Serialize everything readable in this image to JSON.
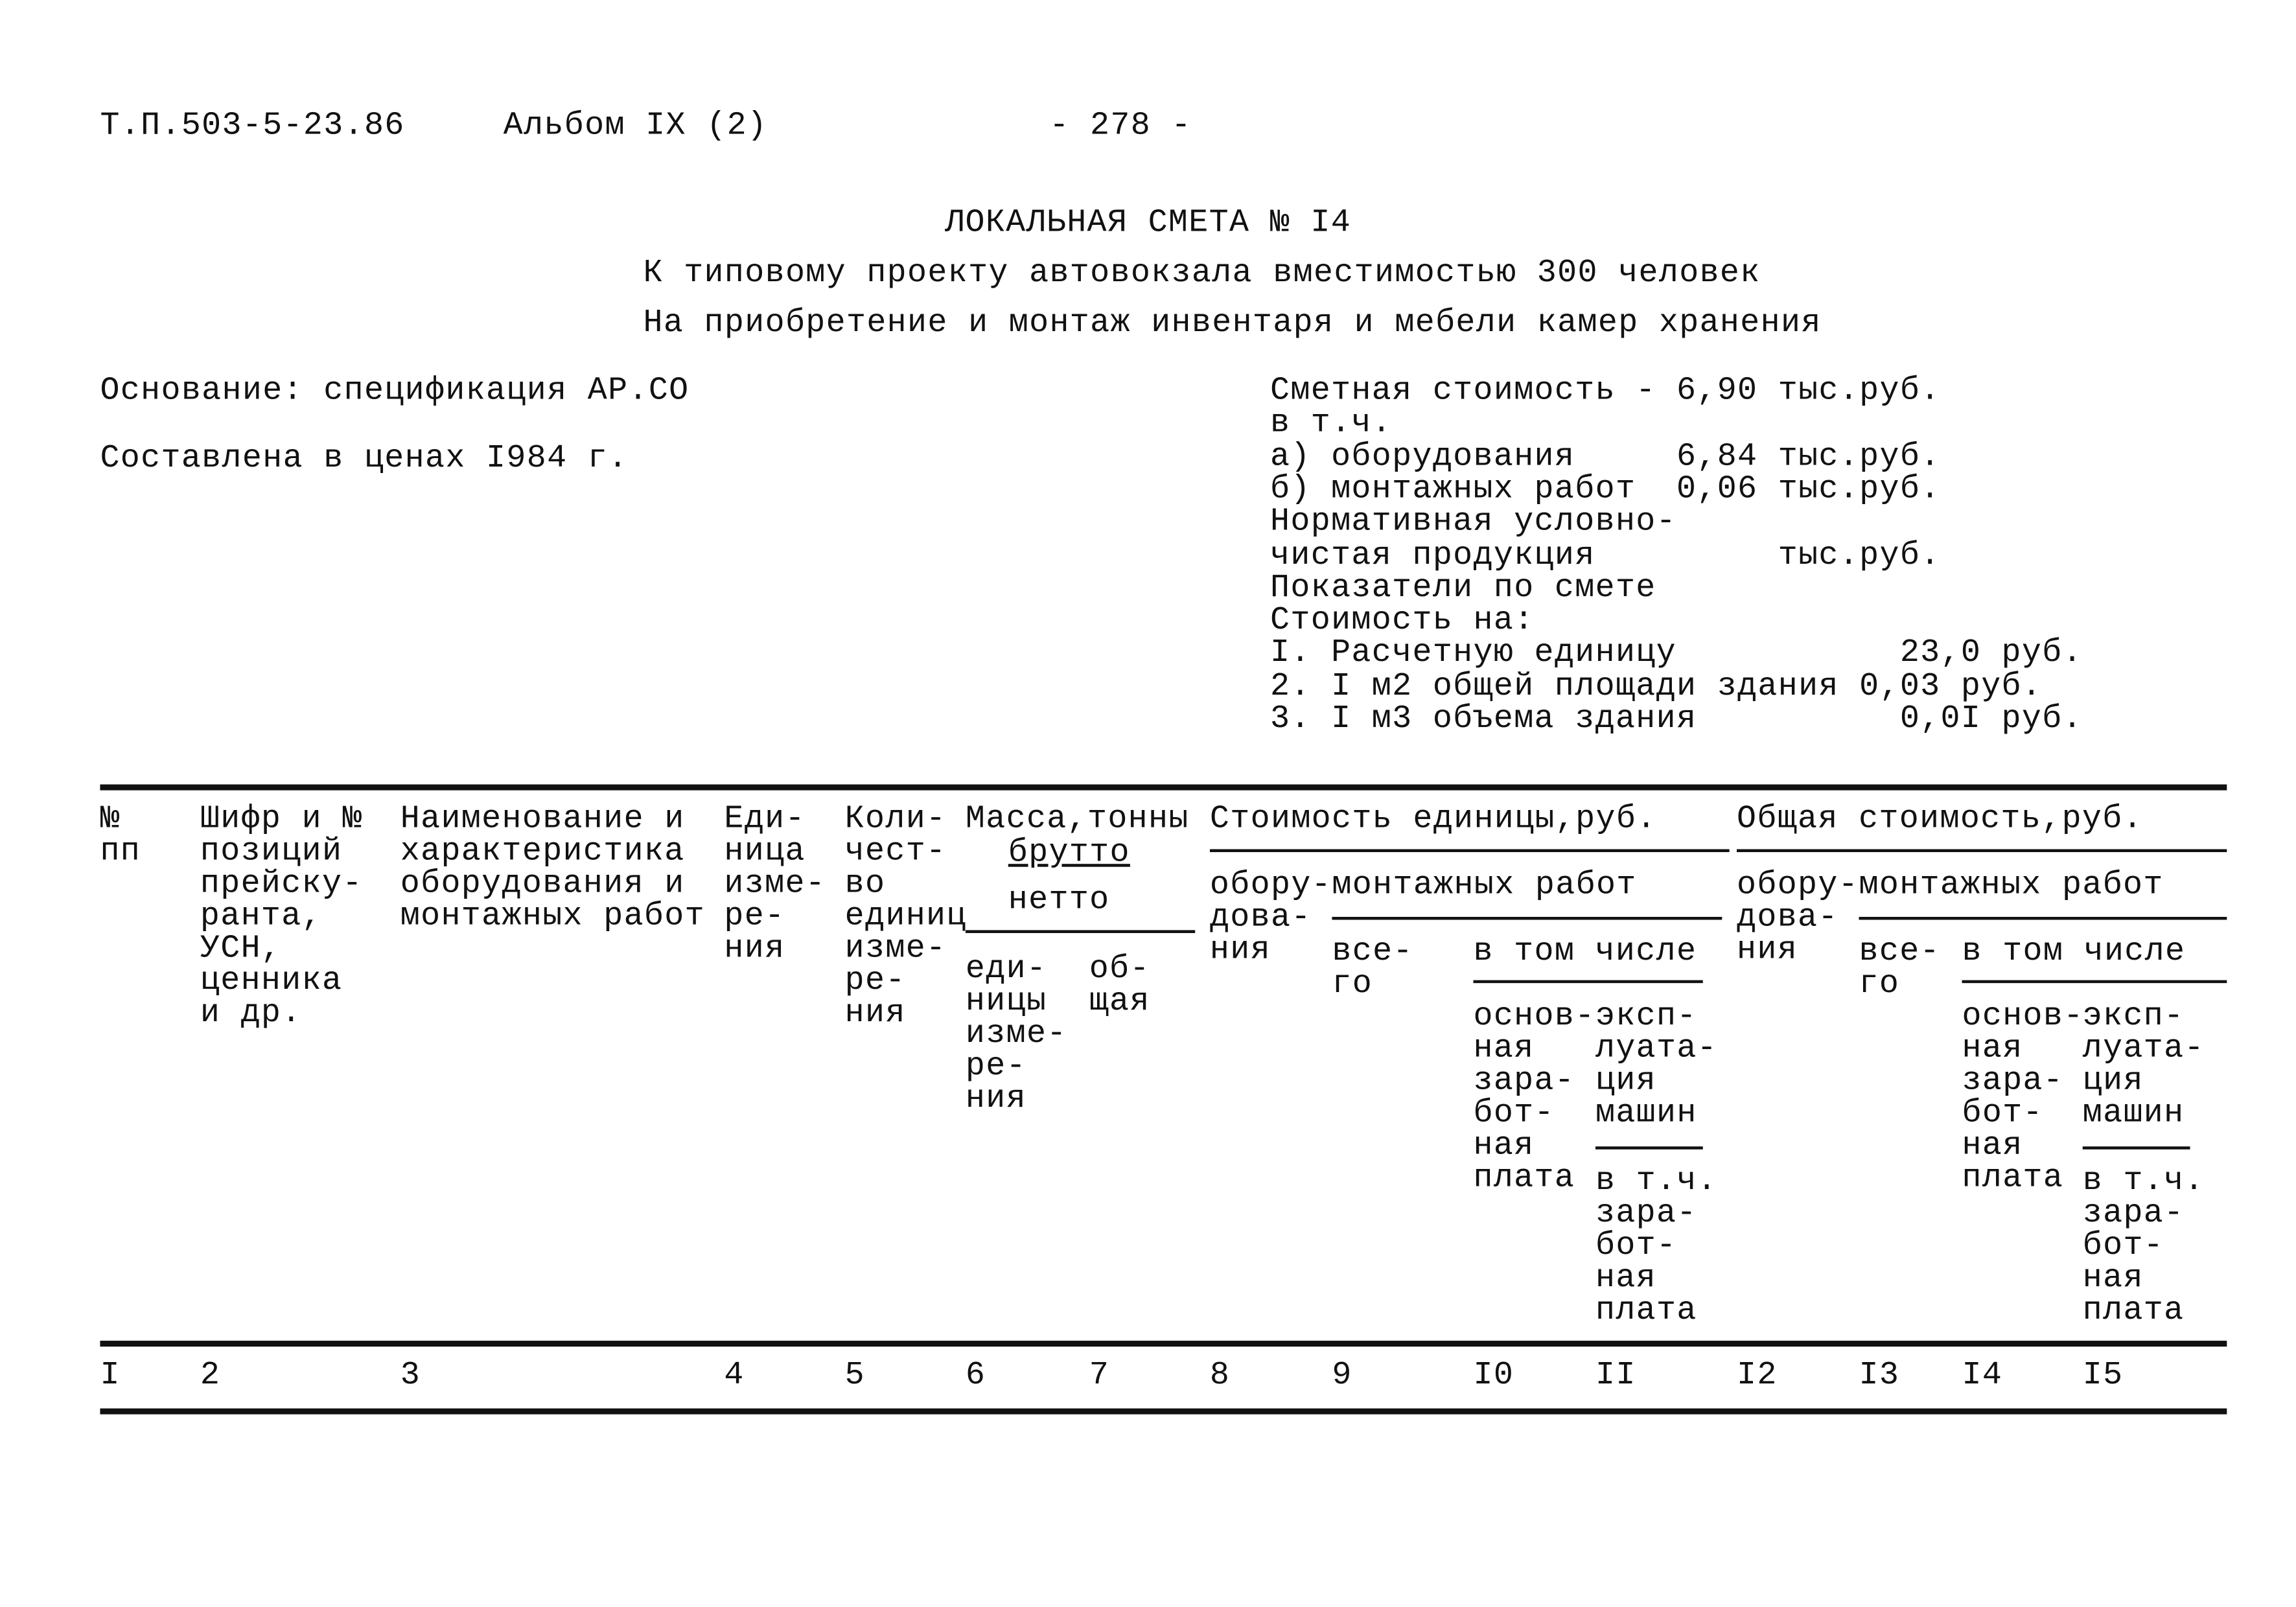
{
  "header": {
    "code": "Т.П.503-5-23.86",
    "album": "Альбом IX (2)",
    "page": "- 278 -"
  },
  "title": {
    "line1": "ЛОКАЛЬНАЯ СМЕТА № I4",
    "line2": "К типовому проекту автовокзала вместимостью 300 человек",
    "line3": "На приобретение и монтаж инвентаря и мебели камер хранения"
  },
  "left": {
    "basis": "Основание: спецификация АР.СО",
    "prices": "Составлена в ценах I984 г."
  },
  "summary": {
    "lines": [
      "Сметная стоимость - 6,90 тыс.руб.",
      "в т.ч.",
      "а) оборудования     6,84 тыс.руб.",
      "б) монтажных работ  0,06 тыс.руб.",
      "Нормативная условно-",
      "чистая продукция         тыс.руб.",
      "Показатели по смете",
      "Стоимость на:",
      "I. Расчетную единицу           23,0 руб.",
      "2. I м2 общей площади здания 0,03 руб.",
      "3. I м3 объема здания          0,0I руб."
    ]
  },
  "table": {
    "h1": "№\nпп",
    "h2": "Шифр и №\nпозиций\nпрейску-\nранта,\nУСН,\nценника\nи др.",
    "h3": "Наименование и\nхарактеристика\nоборудования и\nмонтажных работ",
    "h4": "Еди-\nница\nизме-\nре-\nния",
    "h5": "Коли-\nчест-\nво\nединиц\nизме-\nре-\nния",
    "h6": "Масса,тонны",
    "h6a": "брутто",
    "h6b": "нетто",
    "h6c": "еди-\nницы\nизме-\nре-\nния",
    "h7": "об-\nщая",
    "unit_cost": "Стоимость единицы,руб.",
    "total_cost": "Общая стоимость,руб.",
    "equip": "обору-\nдова-\nния",
    "mont": "монтажных работ",
    "all": "все-\nго",
    "incl": "в том числе",
    "wage": "основ-\nная\nзара-\nбот-\nная\nплата",
    "mach": "эксп-\nлуата-\nция\nмашин",
    "mach_wage": "в т.ч.\nзара-\nбот-\nная\nплата",
    "numbers": [
      "I",
      "2",
      "3",
      "4",
      "5",
      "6",
      "7",
      "8",
      "9",
      "I0",
      "II",
      "I2",
      "I3",
      "I4",
      "I5"
    ]
  }
}
